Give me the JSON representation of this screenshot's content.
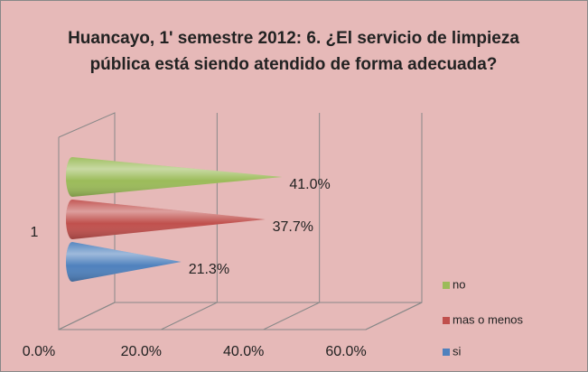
{
  "chart_data": {
    "type": "bar",
    "orientation": "horizontal",
    "title": "Huancayo, 1' semestre 2012: 6. ¿El servicio de limpieza pública está siendo atendido de forma adecuada?",
    "categories": [
      "1"
    ],
    "series": [
      {
        "name": "si",
        "color": "#4f81bd",
        "values": [
          21.3
        ],
        "value_labels": [
          "21.3%"
        ]
      },
      {
        "name": "mas o menos",
        "color": "#c0504d",
        "values": [
          37.7
        ],
        "value_labels": [
          "37.7%"
        ]
      },
      {
        "name": "no",
        "color": "#9bbb59",
        "values": [
          41.0
        ],
        "value_labels": [
          "41.0%"
        ]
      }
    ],
    "xlim": [
      0,
      60
    ],
    "xticks": [
      {
        "value": 0,
        "label": "0.0%"
      },
      {
        "value": 20,
        "label": "20.0%"
      },
      {
        "value": 40,
        "label": "40.0%"
      },
      {
        "value": 60,
        "label": "60.0%"
      }
    ],
    "grid": true,
    "legend": "right"
  }
}
